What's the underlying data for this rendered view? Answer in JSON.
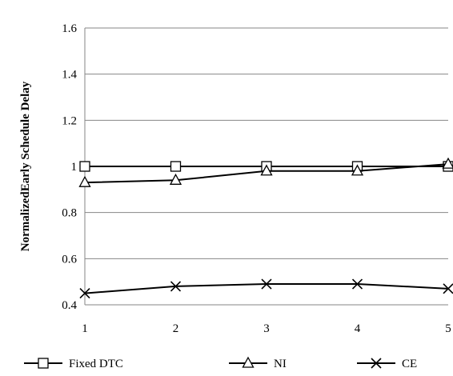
{
  "chart_data": {
    "type": "line",
    "title": "",
    "xlabel": "",
    "ylabel": "NormalizedEarly Schedule Delay",
    "x": [
      1,
      2,
      3,
      4,
      5
    ],
    "x_tick_labels": [
      "1",
      "2",
      "3",
      "4",
      "5"
    ],
    "ylim": [
      0.4,
      1.6
    ],
    "y_ticks": [
      0.4,
      0.6,
      0.8,
      1.0,
      1.2,
      1.4,
      1.6
    ],
    "y_tick_labels": [
      "0.4",
      "0.6",
      "0.8",
      "1",
      "1.2",
      "1.4",
      "1.6"
    ],
    "grid": "horizontal",
    "legend_position": "bottom",
    "series": [
      {
        "name": "Fixed DTC",
        "marker": "square",
        "color": "#000000",
        "values": [
          1.0,
          1.0,
          1.0,
          1.0,
          1.0
        ]
      },
      {
        "name": "NI",
        "marker": "triangle",
        "color": "#000000",
        "values": [
          0.93,
          0.94,
          0.98,
          0.98,
          1.01
        ]
      },
      {
        "name": "CE",
        "marker": "x",
        "color": "#000000",
        "values": [
          0.45,
          0.48,
          0.49,
          0.49,
          0.47
        ]
      }
    ]
  }
}
